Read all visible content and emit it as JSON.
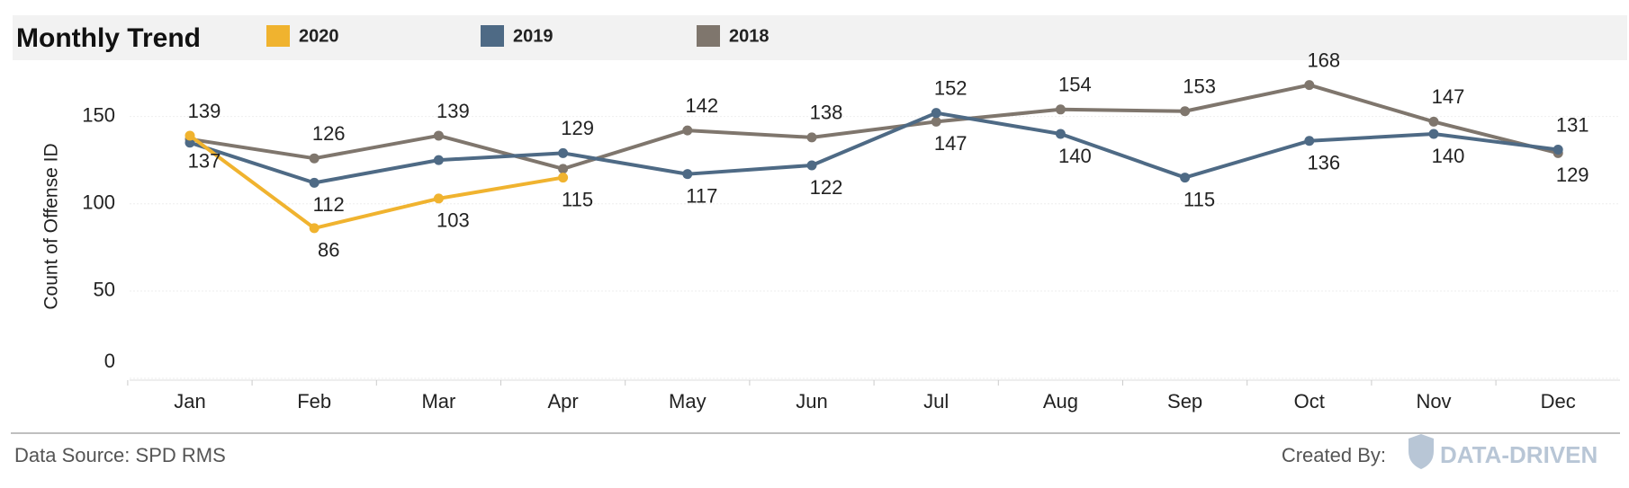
{
  "chart_data": {
    "type": "line",
    "title": "Monthly Trend",
    "y_label": "Count of Offense ID",
    "categories": [
      "Jan",
      "Feb",
      "Mar",
      "Apr",
      "May",
      "Jun",
      "Jul",
      "Aug",
      "Sep",
      "Oct",
      "Nov",
      "Dec"
    ],
    "series": [
      {
        "name": "2020",
        "color": "#f0b32f",
        "values": [
          139,
          86,
          103,
          115,
          null,
          null,
          null,
          null,
          null,
          null,
          null,
          null
        ],
        "value_labels": [
          "139",
          "86",
          "103",
          "115",
          null,
          null,
          null,
          null,
          null,
          null,
          null,
          null
        ]
      },
      {
        "name": "2019",
        "color": "#4e6a85",
        "values": [
          135,
          112,
          125,
          129,
          117,
          122,
          152,
          140,
          115,
          136,
          140,
          131
        ],
        "value_labels": [
          null,
          "112",
          null,
          "129",
          "117",
          "122",
          "152",
          "140",
          "115",
          "136",
          "140",
          "131"
        ]
      },
      {
        "name": "2018",
        "color": "#7f766d",
        "values": [
          137,
          126,
          139,
          120,
          142,
          138,
          147,
          154,
          153,
          168,
          147,
          129
        ],
        "value_labels": [
          "137",
          "126",
          "139",
          null,
          "142",
          "138",
          "147",
          "154",
          "153",
          "168",
          "147",
          "129"
        ]
      }
    ],
    "ylim": [
      0,
      175
    ],
    "yticks": [
      0,
      50,
      100,
      150
    ],
    "grid": true,
    "footer": {
      "source": "Data Source: SPD RMS",
      "created_by": "Created By:",
      "logo": "DATA-DRIVEN"
    }
  }
}
